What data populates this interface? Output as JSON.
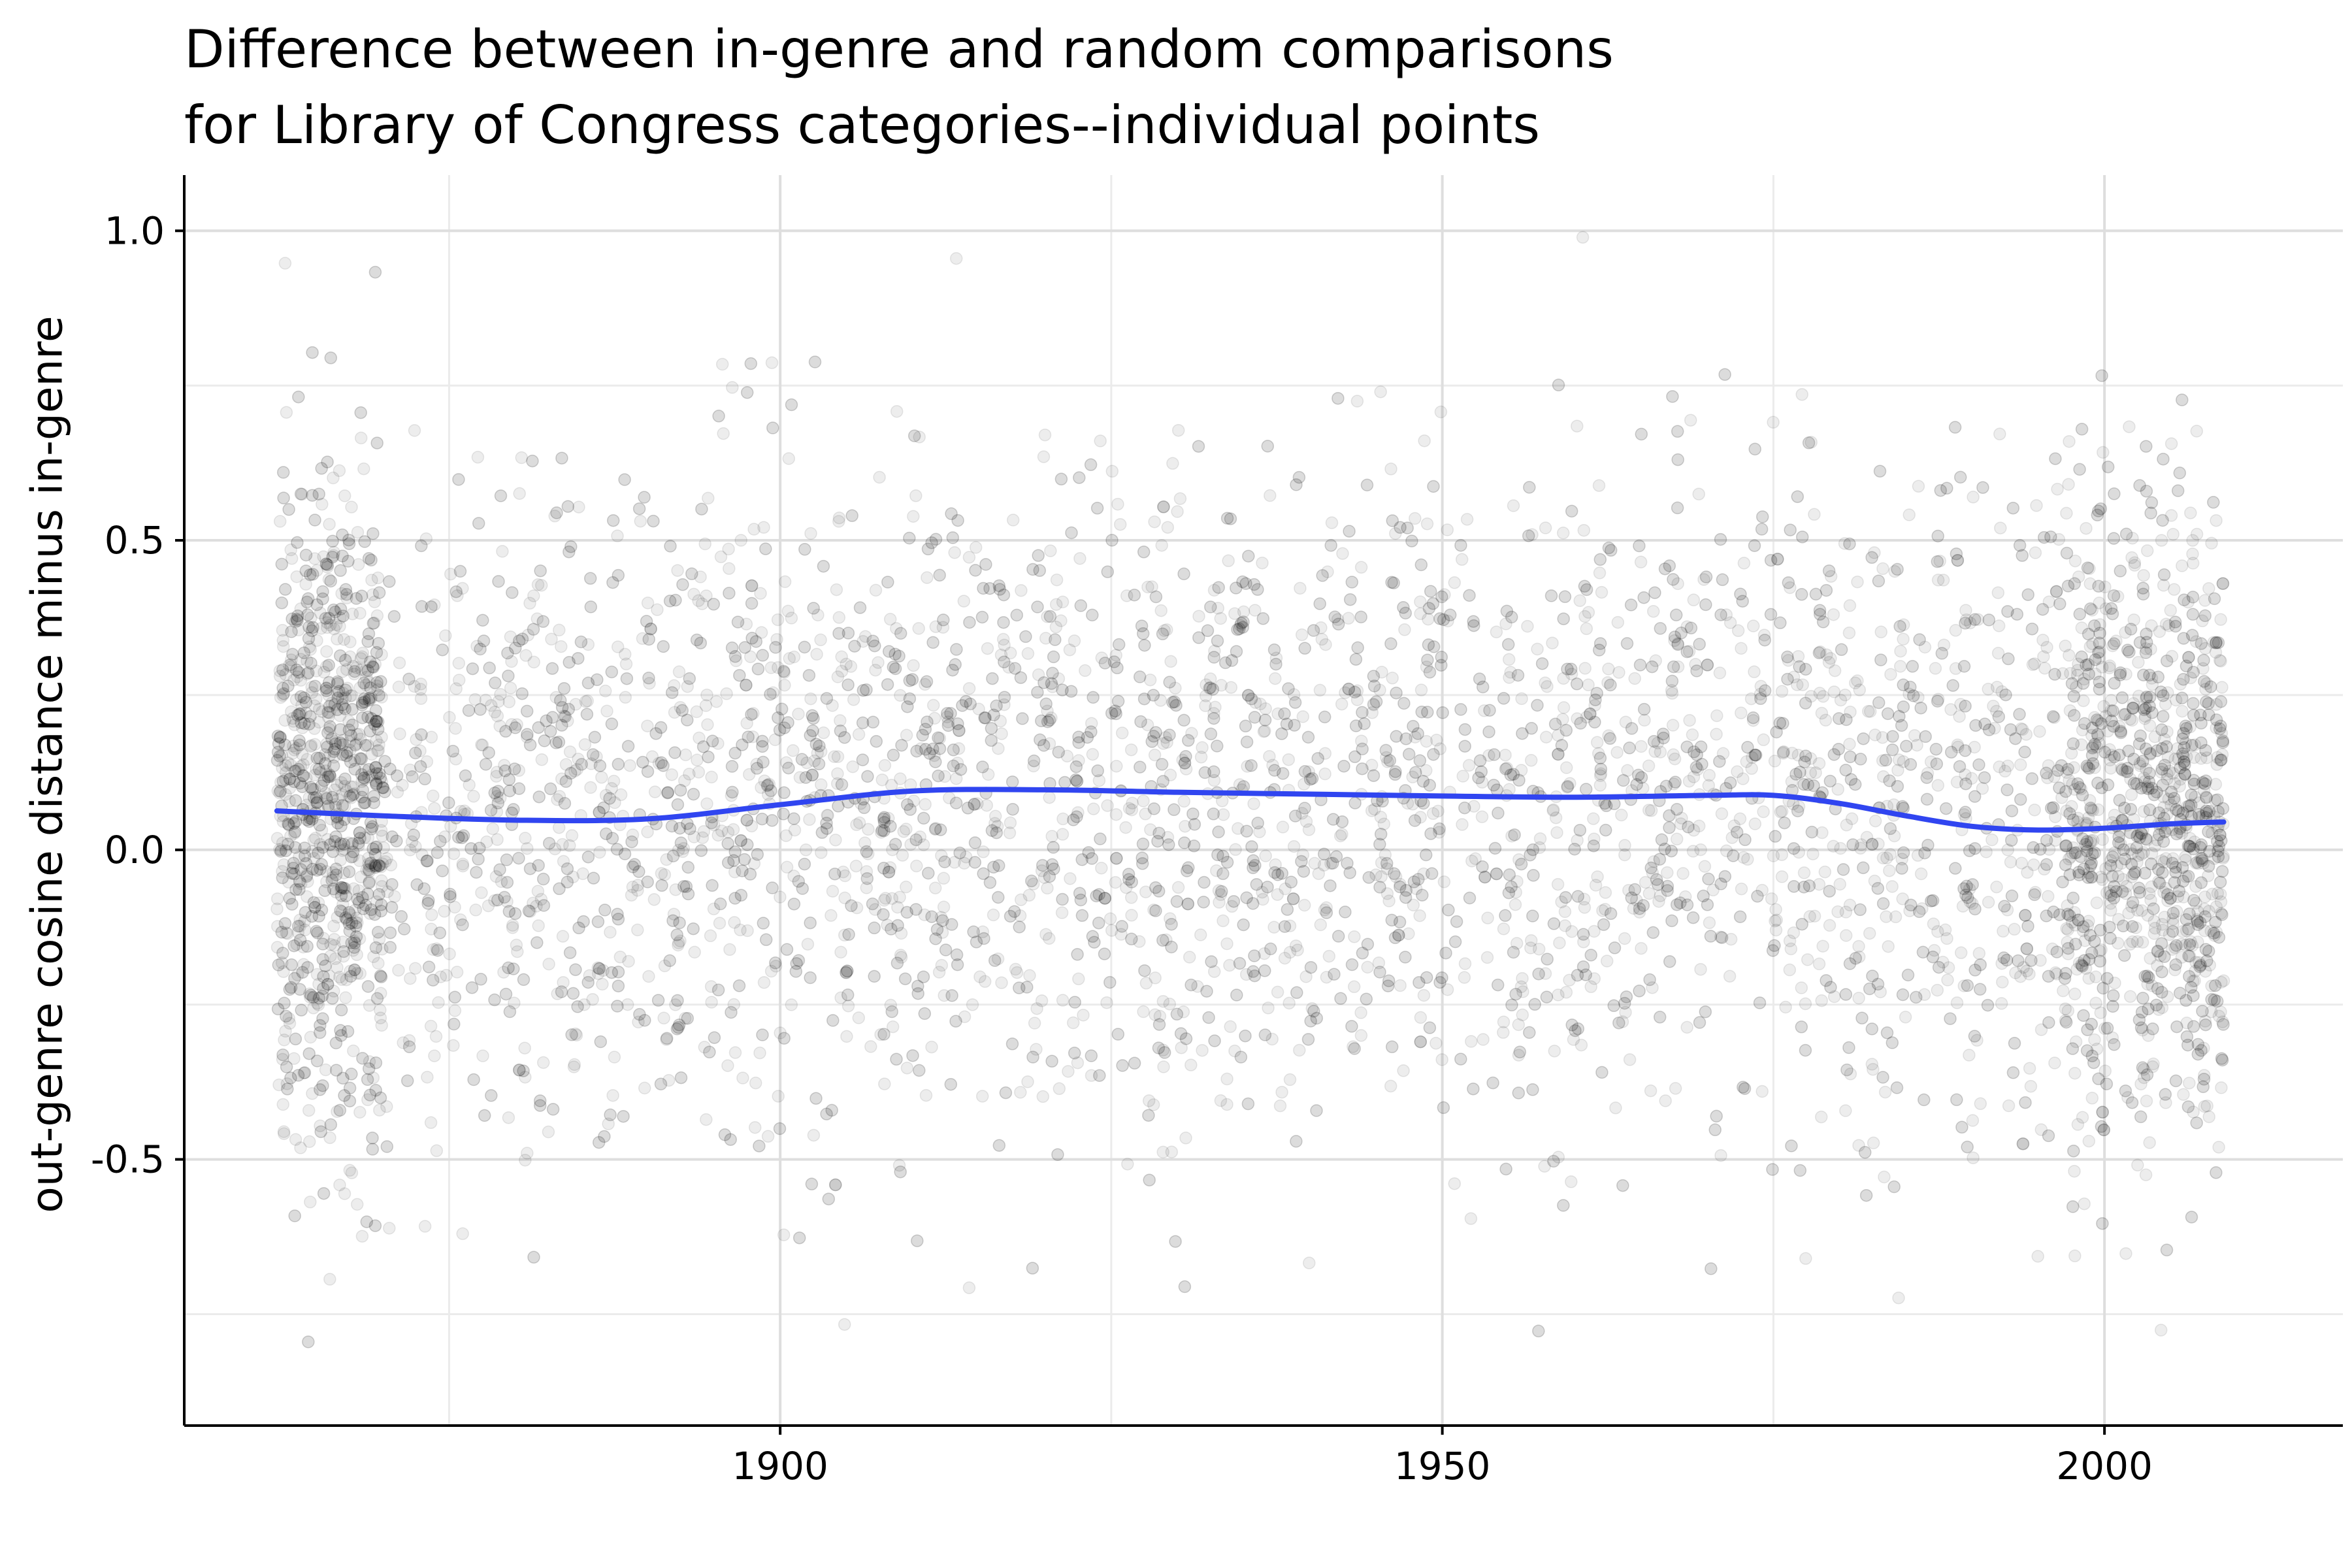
{
  "chart_data": {
    "type": "scatter",
    "title_lines": [
      "Difference between in-genre and random comparisons",
      "for Library of Congress categories--individual points"
    ],
    "xlabel": "",
    "ylabel": "out-genre cosine distance minus in-genre",
    "xlim": [
      1855,
      2018
    ],
    "ylim": [
      -0.93,
      1.09
    ],
    "x_ticks": [
      1900,
      1950,
      2000
    ],
    "x_tick_labels": [
      "1900",
      "1950",
      "2000"
    ],
    "x_minor_ticks": [
      1875,
      1925,
      1975
    ],
    "y_ticks": [
      -0.5,
      0.0,
      0.5,
      1.0
    ],
    "y_tick_labels": [
      "-0.5",
      "0.0",
      "0.5",
      "1.0"
    ],
    "y_minor_ticks": [
      -0.75,
      -0.25,
      0.25,
      0.75
    ],
    "grid": true,
    "point_range_x": [
      1862,
      2009
    ],
    "point_color": "#000000",
    "point_opacity": 0.07,
    "smooth_color": "#3045f0",
    "smooth_line": {
      "x": [
        1862,
        1870,
        1880,
        1890,
        1900,
        1910,
        1920,
        1930,
        1940,
        1950,
        1960,
        1970,
        1975,
        1980,
        1985,
        1990,
        1995,
        2000,
        2005,
        2009
      ],
      "y": [
        0.063,
        0.055,
        0.048,
        0.05,
        0.073,
        0.095,
        0.097,
        0.093,
        0.09,
        0.087,
        0.085,
        0.088,
        0.088,
        0.075,
        0.055,
        0.038,
        0.032,
        0.035,
        0.042,
        0.045
      ]
    }
  }
}
